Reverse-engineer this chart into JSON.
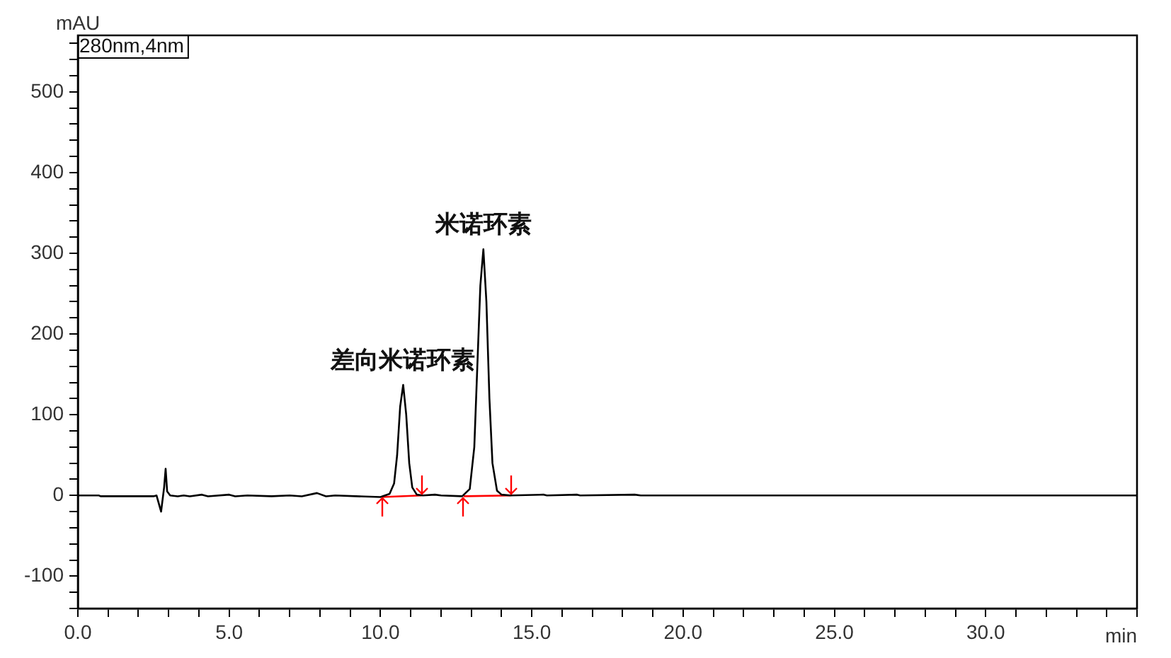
{
  "chart_data": {
    "type": "line",
    "xlabel": "min",
    "ylabel": "mAU",
    "xlim": [
      0,
      35
    ],
    "ylim": [
      -140,
      570
    ],
    "xticks": [
      {
        "value": 0,
        "label": "0.0"
      },
      {
        "value": 1,
        "label": null
      },
      {
        "value": 2,
        "label": null
      },
      {
        "value": 3,
        "label": null
      },
      {
        "value": 4,
        "label": null
      },
      {
        "value": 5,
        "label": "5.0"
      },
      {
        "value": 6,
        "label": null
      },
      {
        "value": 7,
        "label": null
      },
      {
        "value": 8,
        "label": null
      },
      {
        "value": 9,
        "label": null
      },
      {
        "value": 10,
        "label": "10.0"
      },
      {
        "value": 11,
        "label": null
      },
      {
        "value": 12,
        "label": null
      },
      {
        "value": 13,
        "label": null
      },
      {
        "value": 14,
        "label": null
      },
      {
        "value": 15,
        "label": "15.0"
      },
      {
        "value": 16,
        "label": null
      },
      {
        "value": 17,
        "label": null
      },
      {
        "value": 18,
        "label": null
      },
      {
        "value": 19,
        "label": null
      },
      {
        "value": 20,
        "label": "20.0"
      },
      {
        "value": 21,
        "label": null
      },
      {
        "value": 22,
        "label": null
      },
      {
        "value": 23,
        "label": null
      },
      {
        "value": 24,
        "label": null
      },
      {
        "value": 25,
        "label": "25.0"
      },
      {
        "value": 26,
        "label": null
      },
      {
        "value": 27,
        "label": null
      },
      {
        "value": 28,
        "label": null
      },
      {
        "value": 29,
        "label": null
      },
      {
        "value": 30,
        "label": "30.0"
      },
      {
        "value": 31,
        "label": null
      },
      {
        "value": 32,
        "label": null
      },
      {
        "value": 33,
        "label": null
      },
      {
        "value": 34,
        "label": null
      },
      {
        "value": 35,
        "label": null
      }
    ],
    "yticks": [
      {
        "value": -140,
        "label": null
      },
      {
        "value": -120,
        "label": null
      },
      -100,
      {
        "value": -80,
        "label": null
      },
      {
        "value": -60,
        "label": null
      },
      {
        "value": -40,
        "label": null
      },
      {
        "value": -20,
        "label": null
      },
      0,
      {
        "value": 20,
        "label": null
      },
      {
        "value": 40,
        "label": null
      },
      {
        "value": 60,
        "label": null
      },
      {
        "value": 80,
        "label": null
      },
      100,
      {
        "value": 120,
        "label": null
      },
      {
        "value": 140,
        "label": null
      },
      {
        "value": 160,
        "label": null
      },
      {
        "value": 180,
        "label": null
      },
      200,
      {
        "value": 220,
        "label": null
      },
      {
        "value": 240,
        "label": null
      },
      {
        "value": 260,
        "label": null
      },
      {
        "value": 280,
        "label": null
      },
      300,
      {
        "value": 320,
        "label": null
      },
      {
        "value": 340,
        "label": null
      },
      {
        "value": 360,
        "label": null
      },
      {
        "value": 380,
        "label": null
      },
      400,
      {
        "value": 420,
        "label": null
      },
      {
        "value": 440,
        "label": null
      },
      {
        "value": 460,
        "label": null
      },
      {
        "value": 480,
        "label": null
      },
      500,
      {
        "value": 520,
        "label": null
      },
      {
        "value": 540,
        "label": null
      },
      {
        "value": 560,
        "label": null
      }
    ],
    "grid": false,
    "legend": false,
    "marker": "none",
    "line_style": "solid",
    "series": [
      {
        "color": "#000000",
        "x": [
          0,
          0.7,
          0.75,
          2.5,
          2.6,
          2.75,
          2.85,
          2.9,
          2.95,
          3.05,
          3.3,
          3.5,
          3.7,
          4.1,
          4.3,
          5.0,
          5.2,
          5.6,
          6.4,
          7.0,
          7.4,
          7.9,
          8.2,
          8.5,
          10.0,
          10.3,
          10.45,
          10.55,
          10.65,
          10.75,
          10.85,
          10.95,
          11.05,
          11.2,
          11.4,
          11.8,
          12.0,
          12.7,
          12.95,
          13.1,
          13.2,
          13.3,
          13.4,
          13.5,
          13.6,
          13.7,
          13.85,
          14.0,
          14.3,
          15.4,
          15.5,
          16.5,
          16.6,
          18.4,
          18.6,
          35
        ],
        "values": [
          0,
          0,
          -1,
          -1,
          0,
          -20,
          10,
          33,
          5,
          0,
          -1,
          0,
          -1,
          1,
          -1,
          1,
          -1,
          0,
          -1,
          0,
          -1,
          3,
          -1,
          0,
          -2,
          2,
          15,
          50,
          110,
          137,
          100,
          40,
          10,
          1,
          0,
          1,
          0,
          -1,
          8,
          60,
          160,
          260,
          305,
          240,
          120,
          40,
          6,
          1,
          0,
          1,
          0,
          1,
          0,
          1,
          0,
          0
        ]
      },
      {
        "color": "#ff0000",
        "x": [
          10.05,
          11.35
        ],
        "values": [
          -2,
          0
        ]
      },
      {
        "color": "#ff0000",
        "x": [
          12.75,
          14.3
        ],
        "values": [
          -1,
          0
        ]
      }
    ],
    "annotations": [
      "280nm,4nm",
      {
        "text": "差向米诺环素",
        "x": 10.75,
        "y": 137
      },
      {
        "text": "米诺环素",
        "x": 13.4,
        "y": 305
      }
    ]
  }
}
